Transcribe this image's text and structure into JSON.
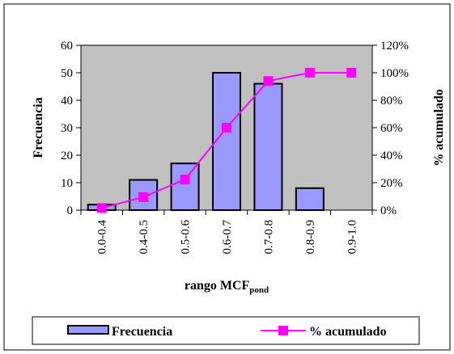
{
  "chart_data": {
    "type": "bar",
    "categories": [
      "0.0-0.4",
      "0.4-0.5",
      "0.5-0.6",
      "0.6-0.7",
      "0.7-0.8",
      "0.8-0.9",
      "0.9-1.0"
    ],
    "series": [
      {
        "name": "Frecuencia",
        "type": "bar",
        "axis": "left",
        "values": [
          2,
          11,
          17,
          50,
          46,
          8,
          0
        ]
      },
      {
        "name": "% acumulado",
        "type": "line",
        "axis": "right",
        "values": [
          1.5,
          9.5,
          22.3,
          60,
          94,
          100,
          100
        ]
      }
    ],
    "xlabel_main": "rango MCF",
    "xlabel_sub": "pond",
    "ylabel": "Frecuencia",
    "y2label": "% acumulado",
    "ylim": [
      0,
      60
    ],
    "yticks": [
      "0",
      "10",
      "20",
      "30",
      "40",
      "50",
      "60"
    ],
    "y2lim": [
      0,
      120
    ],
    "y2ticks": [
      "0%",
      "20%",
      "40%",
      "60%",
      "80%",
      "100%",
      "120%"
    ],
    "legend_position": "bottom",
    "colors": {
      "bar_fill": "#9999ff",
      "line": "#ff00ff",
      "plot_bg": "#c0c0c0"
    }
  }
}
